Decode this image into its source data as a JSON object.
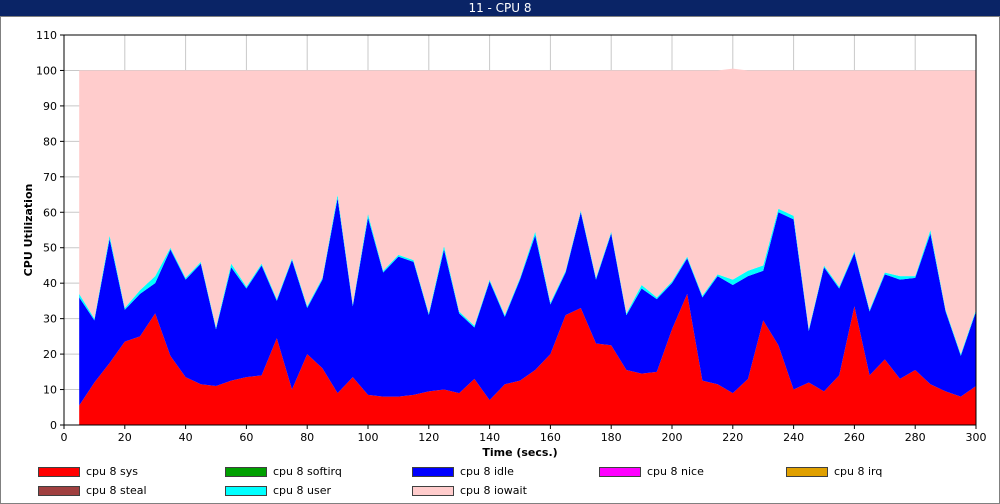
{
  "window": {
    "title": "11 - CPU 8"
  },
  "chart_data": {
    "type": "area",
    "stacked": true,
    "title": "",
    "xlabel": "Time (secs.)",
    "ylabel": "CPU Utilization",
    "xlim": [
      0,
      300
    ],
    "ylim": [
      0,
      110
    ],
    "xticks": [
      0,
      20,
      40,
      60,
      80,
      100,
      120,
      140,
      160,
      180,
      200,
      220,
      240,
      260,
      280,
      300
    ],
    "yticks": [
      0,
      10,
      20,
      30,
      40,
      50,
      60,
      70,
      80,
      90,
      100,
      110
    ],
    "grid": true,
    "legend_position": "bottom",
    "x": [
      5,
      10,
      15,
      20,
      25,
      30,
      35,
      40,
      45,
      50,
      55,
      60,
      65,
      70,
      75,
      80,
      85,
      90,
      95,
      100,
      105,
      110,
      115,
      120,
      125,
      130,
      135,
      140,
      145,
      150,
      155,
      160,
      165,
      170,
      175,
      180,
      185,
      190,
      195,
      200,
      205,
      210,
      215,
      220,
      225,
      230,
      235,
      240,
      245,
      250,
      255,
      260,
      265,
      270,
      275,
      280,
      285,
      290,
      295,
      300
    ],
    "series": [
      {
        "name": "cpu 8 sys",
        "color": "#ff0000",
        "values": [
          5.5,
          12,
          17.5,
          23.5,
          25,
          31.5,
          19.5,
          13.5,
          11.5,
          11,
          12.5,
          13.5,
          14,
          24.5,
          10,
          20,
          16,
          9,
          13.5,
          8.5,
          8,
          8,
          8.5,
          9.5,
          10,
          9,
          13,
          7,
          11.5,
          12.5,
          15.5,
          20,
          31,
          33,
          23,
          22.5,
          15.5,
          14.5,
          15,
          27,
          37,
          12.5,
          11.5,
          9,
          13,
          29.5,
          22.5,
          10,
          12,
          9.5,
          14,
          33.5,
          14,
          18.5,
          13,
          15.5,
          11.5,
          9.5,
          8,
          11
        ]
      },
      {
        "name": "cpu 8 softirq",
        "color": "#00a000",
        "values": [
          0,
          0,
          0,
          0,
          0,
          0,
          0,
          0,
          0,
          0,
          0,
          0,
          0,
          0,
          0,
          0,
          0,
          0,
          0,
          0,
          0,
          0,
          0,
          0,
          0,
          0,
          0,
          0,
          0,
          0,
          0,
          0,
          0,
          0,
          0,
          0,
          0,
          0,
          0,
          0,
          0,
          0,
          0,
          0,
          0,
          0,
          0,
          0,
          0,
          0,
          0,
          0,
          0,
          0,
          0,
          0,
          0,
          0,
          0,
          0
        ]
      },
      {
        "name": "cpu 8 idle",
        "color": "#0000ff",
        "values": [
          30.5,
          17.5,
          35,
          9,
          12,
          8.5,
          30,
          27.5,
          34,
          16,
          32,
          25,
          31,
          10.5,
          36.5,
          13,
          25,
          55,
          20,
          50,
          35,
          39.5,
          37.5,
          21.5,
          39.5,
          22.5,
          14.5,
          33.5,
          19,
          28.5,
          38,
          14,
          12,
          27,
          18,
          31.5,
          15.5,
          24,
          20.5,
          13,
          10,
          23.5,
          30.5,
          30.5,
          29,
          14,
          37.5,
          48,
          14.5,
          35,
          24.5,
          15,
          18,
          24,
          28,
          26,
          42.5,
          22.5,
          11.5,
          21
        ]
      },
      {
        "name": "cpu 8 nice",
        "color": "#ff00ff",
        "values": [
          0,
          0,
          0,
          0,
          0,
          0,
          0,
          0,
          0,
          0,
          0,
          0,
          0,
          0,
          0,
          0,
          0,
          0,
          0,
          0,
          0,
          0,
          0,
          0,
          0,
          0,
          0,
          0,
          0,
          0,
          0,
          0,
          0,
          0,
          0,
          0,
          0,
          0,
          0,
          0,
          0,
          0,
          0,
          0,
          0,
          0,
          0,
          0,
          0,
          0,
          0,
          0,
          0,
          0,
          0,
          0,
          0,
          0,
          0,
          0
        ]
      },
      {
        "name": "cpu 8 irq",
        "color": "#e0a000",
        "values": [
          0,
          0,
          0,
          0,
          0,
          0,
          0,
          0,
          0,
          0,
          0,
          0,
          0,
          0,
          0,
          0,
          0,
          0,
          0,
          0,
          0,
          0,
          0,
          0,
          0,
          0,
          0,
          0,
          0,
          0,
          0,
          0,
          0,
          0,
          0,
          0,
          0,
          0,
          0,
          0,
          0,
          0,
          0,
          0,
          0,
          0,
          0,
          0,
          0,
          0,
          0,
          0,
          0,
          0,
          0,
          0,
          0,
          0,
          0,
          0
        ]
      },
      {
        "name": "cpu 8 steal",
        "color": "#a04040",
        "values": [
          0,
          0,
          0,
          0,
          0,
          0,
          0,
          0,
          0,
          0,
          0,
          0,
          0,
          0,
          0,
          0,
          0,
          0,
          0,
          0,
          0,
          0,
          0,
          0,
          0,
          0,
          0,
          0,
          0,
          0,
          0,
          0,
          0,
          0,
          0,
          0,
          0,
          0,
          0,
          0,
          0,
          0,
          0,
          0,
          0,
          0,
          0,
          0,
          0,
          0,
          0,
          0,
          0,
          0,
          0,
          0,
          0,
          0,
          0,
          0
        ]
      },
      {
        "name": "cpu 8 user",
        "color": "#00ffff",
        "values": [
          1,
          0.5,
          1,
          0.5,
          1,
          2,
          0.5,
          0.5,
          0.5,
          0.5,
          1,
          0.5,
          0.5,
          0.5,
          0.5,
          0.5,
          0.5,
          1,
          0.5,
          1,
          0.5,
          0.5,
          0.5,
          0.5,
          1,
          0.5,
          0.5,
          0.5,
          0.5,
          0.5,
          1,
          0.5,
          0.5,
          0.5,
          0.5,
          0.5,
          0.5,
          1,
          0.5,
          0.5,
          0.5,
          0.5,
          0.5,
          1.5,
          1.5,
          1.5,
          1,
          1,
          0.5,
          0.5,
          0.5,
          0.5,
          0.5,
          0.5,
          1,
          0.5,
          1,
          0.5,
          0.5,
          0.5
        ]
      },
      {
        "name": "cpu 8 iowait",
        "color": "#ffcccc",
        "values": [
          63,
          70,
          46.5,
          67,
          62,
          58,
          50,
          58.5,
          54,
          72.5,
          54.5,
          61,
          54.5,
          64.5,
          53,
          66.5,
          58.5,
          35,
          66,
          40.5,
          56.5,
          52,
          53.5,
          68.5,
          49.5,
          68,
          72,
          59,
          69,
          58.5,
          45.5,
          65.5,
          56.5,
          39.5,
          58.5,
          45.5,
          68.5,
          60.5,
          64,
          59.5,
          52.5,
          63.5,
          57.5,
          59.5,
          56.5,
          55,
          39,
          41,
          73,
          55,
          61,
          51,
          67.5,
          57,
          58,
          58,
          45,
          67.5,
          80,
          67.5
        ]
      }
    ]
  }
}
